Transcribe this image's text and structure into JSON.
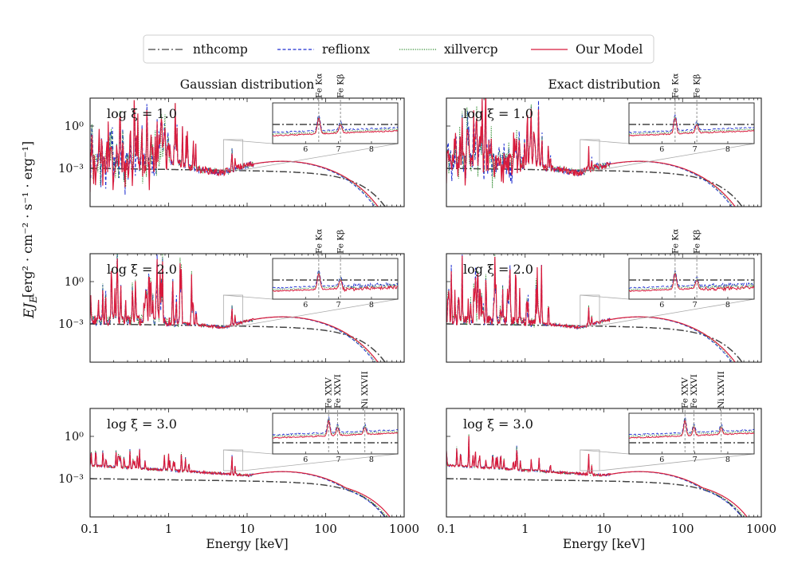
{
  "legend": {
    "items": [
      {
        "name": "nthcomp",
        "color": "#444444",
        "dash": "dashdot"
      },
      {
        "name": "reflionx",
        "color": "#1f2fd0",
        "dash": "dashed"
      },
      {
        "name": "xillvercp",
        "color": "#2e8b2e",
        "dash": "dotted"
      },
      {
        "name": "Our Model",
        "color": "#d81b3c",
        "dash": "solid"
      }
    ]
  },
  "columns": {
    "left_title": "Gaussian distribution",
    "right_title": "Exact distribution"
  },
  "axes": {
    "xlabel": "Energy [keV]",
    "ylabel_sym": "EJ",
    "ylabel_sub": "E",
    "ylabel_units": "[erg² · cm⁻² · s⁻¹ · erg⁻¹]",
    "xticks": [
      "0.1",
      "1",
      "10",
      "100",
      "1000"
    ],
    "yticks": [
      "10⁰",
      "10⁻³"
    ]
  },
  "chart_data": [
    {
      "type": "line",
      "title": "Gaussian distribution",
      "xscale": "log",
      "xlim": [
        0.1,
        1000
      ],
      "rows": [
        {
          "label": "log ξ = 1.0",
          "lines": [
            "Fe Kα",
            "Fe Kβ"
          ],
          "line_energies_keV": [
            6.4,
            7.06
          ]
        },
        {
          "label": "log ξ = 2.0",
          "lines": [
            "Fe Kα",
            "Fe Kβ"
          ],
          "line_energies_keV": [
            6.4,
            7.06
          ]
        },
        {
          "label": "log ξ = 3.0",
          "lines": [
            "Fe XXV",
            "Fe XXVI",
            "Ni XXVII"
          ],
          "line_energies_keV": [
            6.7,
            6.97,
            7.8
          ]
        }
      ],
      "inset": {
        "xlim": [
          5,
          8.8
        ],
        "xticks": [
          "6",
          "7",
          "8"
        ]
      }
    },
    {
      "type": "line",
      "title": "Exact distribution",
      "xscale": "log",
      "xlim": [
        0.1,
        1000
      ],
      "rows": [
        {
          "label": "log ξ = 1.0",
          "lines": [
            "Fe Kα",
            "Fe Kβ"
          ],
          "line_energies_keV": [
            6.4,
            7.06
          ]
        },
        {
          "label": "log ξ = 2.0",
          "lines": [
            "Fe Kα",
            "Fe Kβ"
          ],
          "line_energies_keV": [
            6.4,
            7.06
          ]
        },
        {
          "label": "log ξ = 3.0",
          "lines": [
            "Fe XXV",
            "Fe XXVI",
            "Ni XXVII"
          ],
          "line_energies_keV": [
            6.7,
            6.97,
            7.8
          ]
        }
      ],
      "inset": {
        "xlim": [
          5,
          8.8
        ],
        "xticks": [
          "6",
          "7",
          "8"
        ]
      }
    }
  ]
}
